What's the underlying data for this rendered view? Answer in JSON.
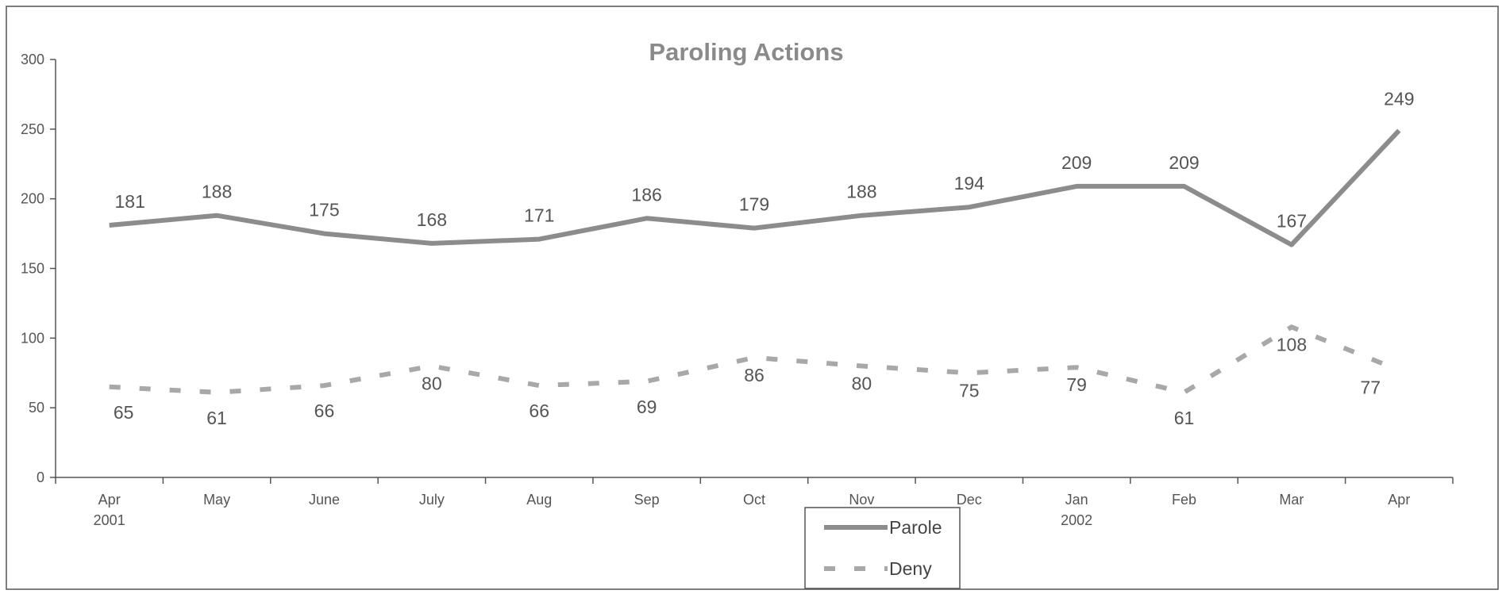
{
  "chart_data": {
    "type": "line",
    "title": "Paroling Actions",
    "xlabel": "",
    "ylabel": "",
    "categories": [
      "Apr",
      "May",
      "June",
      "July",
      "Aug",
      "Sep",
      "Oct",
      "Nov",
      "Dec",
      "Jan",
      "Feb",
      "Mar",
      "Apr"
    ],
    "category_sublabels": [
      "2001",
      "",
      "",
      "",
      "",
      "",
      "",
      "",
      "",
      "2002",
      "",
      "",
      ""
    ],
    "ylim": [
      0,
      300
    ],
    "yticks": [
      0,
      50,
      100,
      150,
      200,
      250,
      300
    ],
    "grid": false,
    "legend_position": "bottom-center",
    "series": [
      {
        "name": "Parole",
        "style": "solid",
        "color": "#8c8c8c",
        "values": [
          181,
          188,
          175,
          168,
          171,
          186,
          179,
          188,
          194,
          209,
          209,
          167,
          249
        ],
        "labels": [
          "181",
          "188",
          "175",
          "168",
          "171",
          "186",
          "179",
          "188",
          "194",
          "209",
          "209",
          "167",
          "249"
        ]
      },
      {
        "name": "Deny",
        "style": "dashed",
        "color": "#a8a8a8",
        "values": [
          65,
          61,
          66,
          80,
          66,
          69,
          86,
          80,
          75,
          79,
          61,
          108,
          77
        ],
        "labels": [
          "65",
          "61",
          "66",
          "80",
          "66",
          "69",
          "86",
          "80",
          "75",
          "79",
          "61",
          "108",
          "77"
        ]
      }
    ]
  }
}
